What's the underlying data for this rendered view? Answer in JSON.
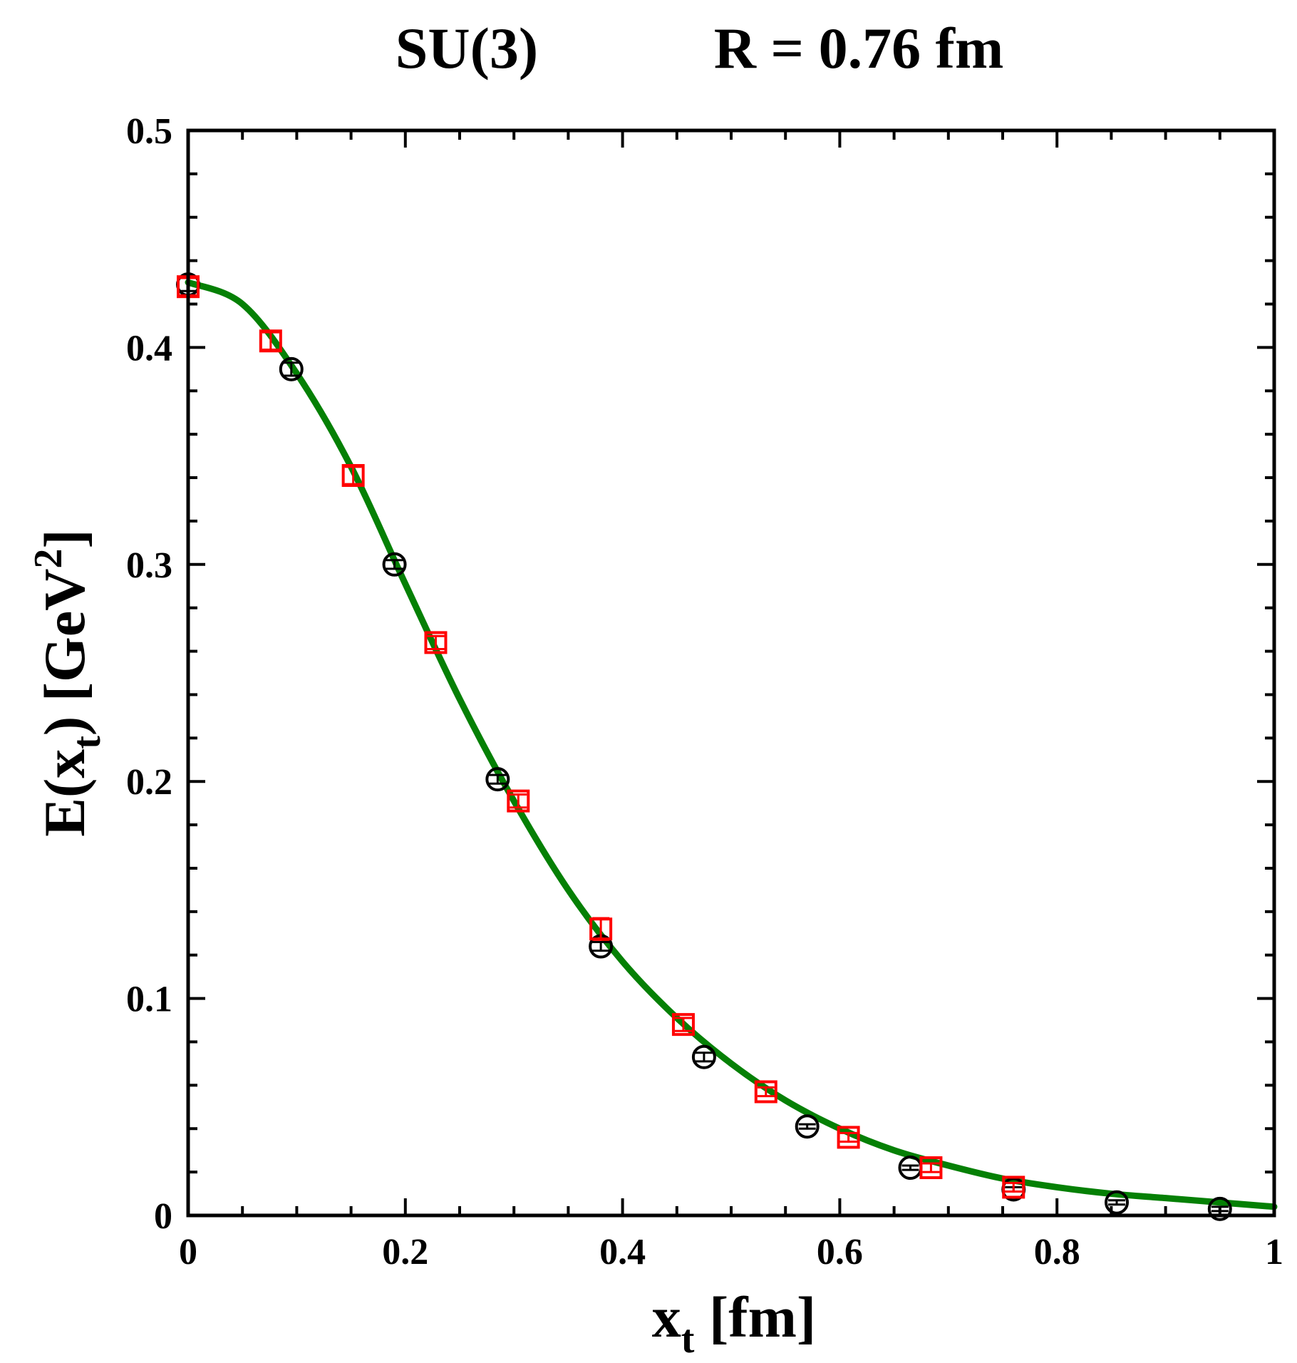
{
  "chart_data": {
    "type": "scatter",
    "title": {
      "left": "SU(3)",
      "right": "R = 0.76 fm"
    },
    "xlabel": {
      "main": "x",
      "sub": "t",
      "unit": " [fm]"
    },
    "ylabel": {
      "pre": "E(x",
      "sub": "t",
      "mid": ") [GeV",
      "sup": "2",
      "post": "]"
    },
    "xlim": [
      0,
      1
    ],
    "ylim": [
      0,
      0.5
    ],
    "x_ticks": [
      "0",
      "0.2",
      "0.4",
      "0.6",
      "0.8",
      "1"
    ],
    "y_ticks": [
      "0",
      "0.1",
      "0.2",
      "0.3",
      "0.4",
      "0.5"
    ],
    "x_tick_values": [
      0,
      0.2,
      0.4,
      0.6,
      0.8,
      1.0
    ],
    "y_tick_values": [
      0,
      0.1,
      0.2,
      0.3,
      0.4,
      0.5
    ],
    "x_minor_step": 0.05,
    "y_minor_step": 0.02,
    "grid": false,
    "series": [
      {
        "name": "circles",
        "marker": "circle",
        "color": "#000000",
        "x": [
          0.0,
          0.095,
          0.19,
          0.285,
          0.38,
          0.475,
          0.57,
          0.665,
          0.76,
          0.855,
          0.95
        ],
        "y": [
          0.429,
          0.39,
          0.3,
          0.201,
          0.124,
          0.073,
          0.041,
          0.022,
          0.012,
          0.006,
          0.003
        ],
        "err": [
          0.003,
          0.003,
          0.002,
          0.002,
          0.002,
          0.002,
          0.001,
          0.001,
          0.001,
          0.001,
          0.001
        ]
      },
      {
        "name": "squares",
        "marker": "square",
        "color": "#ff0000",
        "x": [
          0.0,
          0.076,
          0.152,
          0.228,
          0.304,
          0.38,
          0.456,
          0.532,
          0.608,
          0.684,
          0.76
        ],
        "y": [
          0.428,
          0.403,
          0.341,
          0.264,
          0.191,
          0.132,
          0.088,
          0.057,
          0.036,
          0.022,
          0.013
        ],
        "err": [
          0.004,
          0.004,
          0.004,
          0.003,
          0.003,
          0.005,
          0.003,
          0.002,
          0.002,
          0.002,
          0.002
        ]
      },
      {
        "name": "fit",
        "type": "line",
        "color": "#058005",
        "x": [
          0.0,
          0.05,
          0.1,
          0.15,
          0.2,
          0.25,
          0.3,
          0.35,
          0.4,
          0.45,
          0.5,
          0.55,
          0.6,
          0.65,
          0.7,
          0.75,
          0.8,
          0.85,
          0.9,
          0.95,
          1.0
        ],
        "y": [
          0.43,
          0.42,
          0.388,
          0.345,
          0.291,
          0.238,
          0.191,
          0.15,
          0.117,
          0.091,
          0.07,
          0.053,
          0.04,
          0.03,
          0.023,
          0.017,
          0.013,
          0.01,
          0.008,
          0.006,
          0.004
        ]
      }
    ]
  }
}
